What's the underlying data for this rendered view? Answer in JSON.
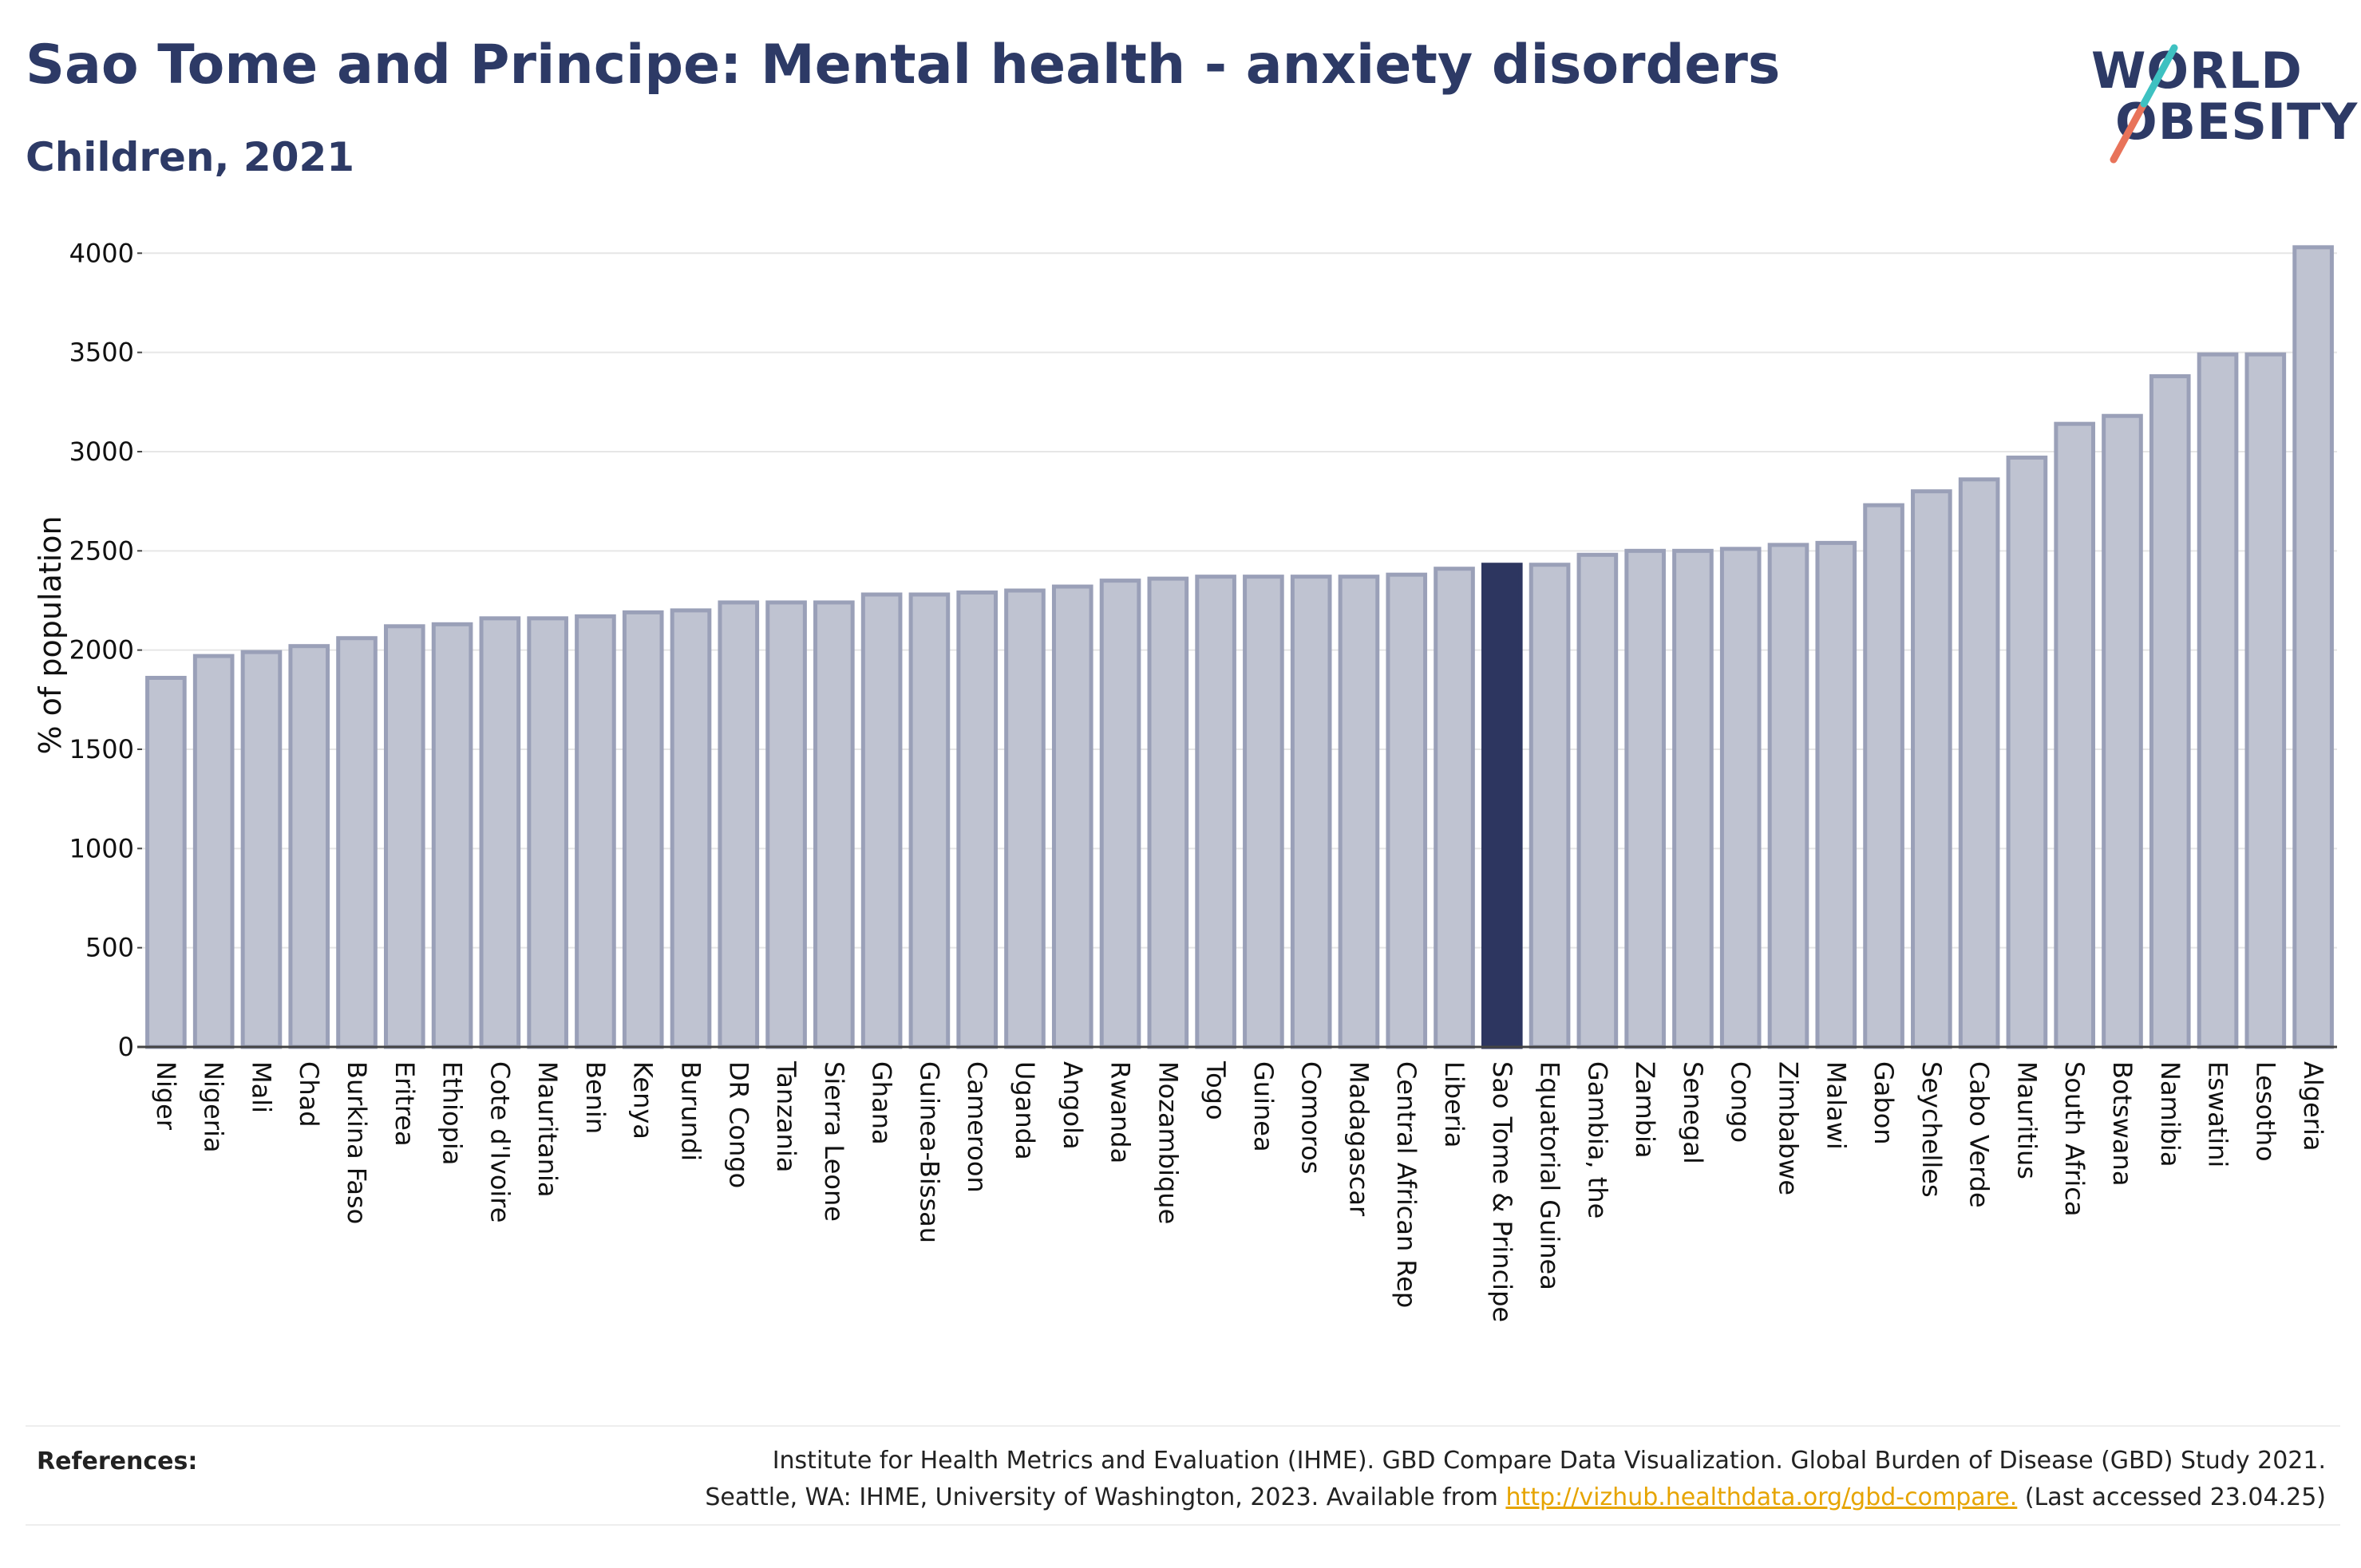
{
  "title": "Sao Tome and Principe: Mental health - anxiety disorders",
  "subtitle": "Children, 2021",
  "logo": {
    "line1": "WORLD",
    "line2": "OBESITY"
  },
  "colors": {
    "bar": "#bfc3d1",
    "bar_border": "#9aa0b8",
    "highlight": "#2d3660",
    "text": "#2d3a66",
    "link": "#e6a400"
  },
  "chart_data": {
    "type": "bar",
    "ylabel": "% of population",
    "ylim": [
      0,
      4150
    ],
    "yticks": [
      0,
      500,
      1000,
      1500,
      2000,
      2500,
      3000,
      3500,
      4000
    ],
    "grid": true,
    "highlight": "Sao Tome & Principe",
    "categories": [
      "Niger",
      "Nigeria",
      "Mali",
      "Chad",
      "Burkina Faso",
      "Eritrea",
      "Ethiopia",
      "Cote d'Ivoire",
      "Mauritania",
      "Benin",
      "Kenya",
      "Burundi",
      "DR Congo",
      "Tanzania",
      "Sierra Leone",
      "Ghana",
      "Guinea-Bissau",
      "Cameroon",
      "Uganda",
      "Angola",
      "Rwanda",
      "Mozambique",
      "Togo",
      "Guinea",
      "Comoros",
      "Madagascar",
      "Central African Rep",
      "Liberia",
      "Sao Tome & Principe",
      "Equatorial Guinea",
      "Gambia, the",
      "Zambia",
      "Senegal",
      "Congo",
      "Zimbabwe",
      "Malawi",
      "Gabon",
      "Seychelles",
      "Cabo Verde",
      "Mauritius",
      "South Africa",
      "Botswana",
      "Namibia",
      "Eswatini",
      "Lesotho",
      "Algeria"
    ],
    "values": [
      1860,
      1970,
      1990,
      2020,
      2060,
      2120,
      2130,
      2160,
      2160,
      2170,
      2190,
      2200,
      2240,
      2240,
      2240,
      2280,
      2280,
      2290,
      2300,
      2320,
      2350,
      2360,
      2370,
      2370,
      2370,
      2370,
      2380,
      2410,
      2430,
      2430,
      2480,
      2500,
      2500,
      2510,
      2530,
      2540,
      2730,
      2800,
      2860,
      2970,
      3140,
      3180,
      3380,
      3490,
      3490,
      4030
    ]
  },
  "references": {
    "label": "References:",
    "line1": "Institute for Health Metrics and Evaluation (IHME). GBD Compare Data Visualization. Global Burden of Disease (GBD) Study 2021.",
    "line2_pre": "Seattle, WA: IHME, University of Washington, 2023. Available from ",
    "link": "http://vizhub.healthdata.org/gbd-compare.",
    "line2_post": " (Last accessed 23.04.25)"
  }
}
